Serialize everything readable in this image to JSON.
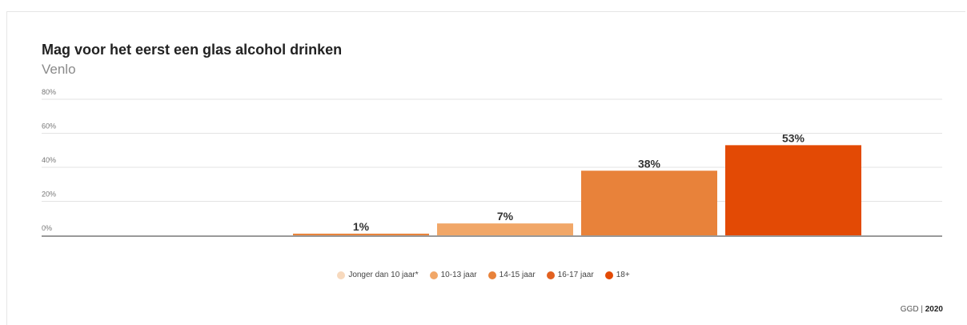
{
  "chart_data": {
    "type": "bar",
    "title": "Mag voor het eerst een glas alcohol drinken",
    "subtitle": "Venlo",
    "categories": [
      "Jonger dan 10 jaar*",
      "10-13 jaar",
      "14-15 jaar",
      "16-17 jaar",
      "18+"
    ],
    "values": [
      0,
      1,
      7,
      38,
      53
    ],
    "data_labels": [
      "",
      "1%",
      "7%",
      "38%",
      "53%"
    ],
    "colors": [
      "#f7d9bd",
      "#f1a768",
      "#e8823a",
      "#e26120",
      "#e34a05"
    ],
    "bar_colors": [
      "#f7d9bd",
      "#e8823a",
      "#f1a768",
      "#e8823a",
      "#e34a05"
    ],
    "ylim": [
      0,
      80
    ],
    "yticks": [
      0,
      20,
      40,
      60,
      80
    ],
    "ytick_labels": [
      "0%",
      "20%",
      "40%",
      "60%",
      "80%"
    ],
    "grid": true,
    "legend": "bottom-center",
    "legend_entries": [
      "Jonger dan 10 jaar*",
      "10-13 jaar",
      "14-15 jaar",
      "16-17 jaar",
      "18+"
    ]
  },
  "source": {
    "org": "GGD",
    "separator": "|",
    "year": "2020"
  }
}
